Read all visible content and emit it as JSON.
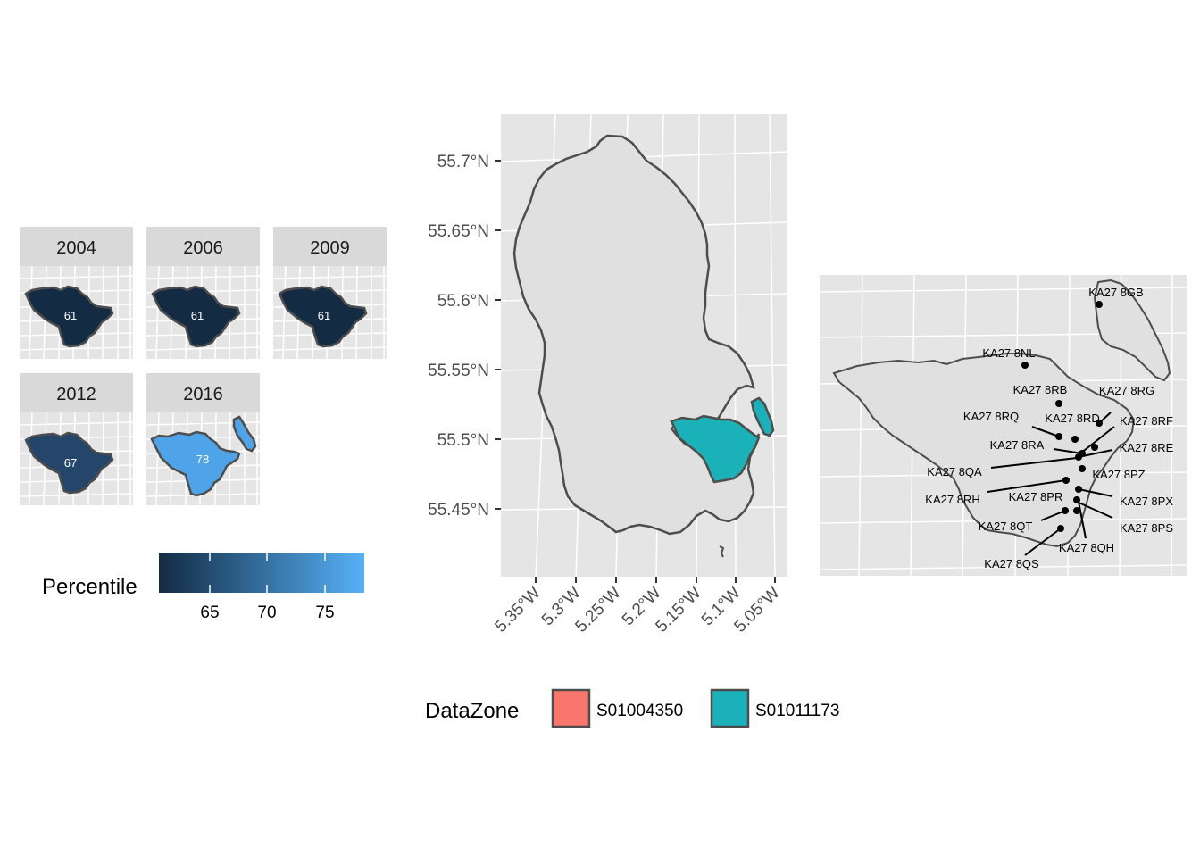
{
  "colors": {
    "panel_bg": "#e5e5e5",
    "grid": "#ffffff",
    "strip_bg": "#d9d9d9",
    "land_fill": "#e0e0e0",
    "outline": "#4d4d4d",
    "datazone_a": "#f8766d",
    "datazone_b": "#1ab2b8",
    "gradient_low": "#132b43",
    "gradient_high": "#56b1f7"
  },
  "facets": [
    {
      "year": "2004",
      "value": "61"
    },
    {
      "year": "2006",
      "value": "61"
    },
    {
      "year": "2009",
      "value": "61"
    },
    {
      "year": "2012",
      "value": "67"
    },
    {
      "year": "2016",
      "value": "78"
    }
  ],
  "percentile_legend": {
    "title": "Percentile",
    "ticks": [
      "65",
      "70",
      "75"
    ]
  },
  "main_map": {
    "y_ticks": [
      "55.7°N",
      "55.65°N",
      "55.6°N",
      "55.55°N",
      "55.5°N",
      "55.45°N"
    ],
    "x_ticks": [
      "5.35°W",
      "5.3°W",
      "5.25°W",
      "5.2°W",
      "5.15°W",
      "5.1°W",
      "5.05°W"
    ]
  },
  "datazone_legend": {
    "title": "DataZone",
    "items": [
      {
        "label": "S01004350",
        "color": "#f8766d"
      },
      {
        "label": "S01011173",
        "color": "#1ab2b8"
      }
    ]
  },
  "postcodes": [
    "KA27 8GB",
    "KA27 8NL",
    "KA27 8RB",
    "KA27 8RG",
    "KA27 8RQ",
    "KA27 8RD",
    "KA27 8RF",
    "KA27 8RA",
    "KA27 8RE",
    "KA27 8QA",
    "KA27 8PZ",
    "KA27 8RH",
    "KA27 8PR",
    "KA27 8PX",
    "KA27 8QT",
    "KA27 8PS",
    "KA27 8QH",
    "KA27 8QS"
  ]
}
